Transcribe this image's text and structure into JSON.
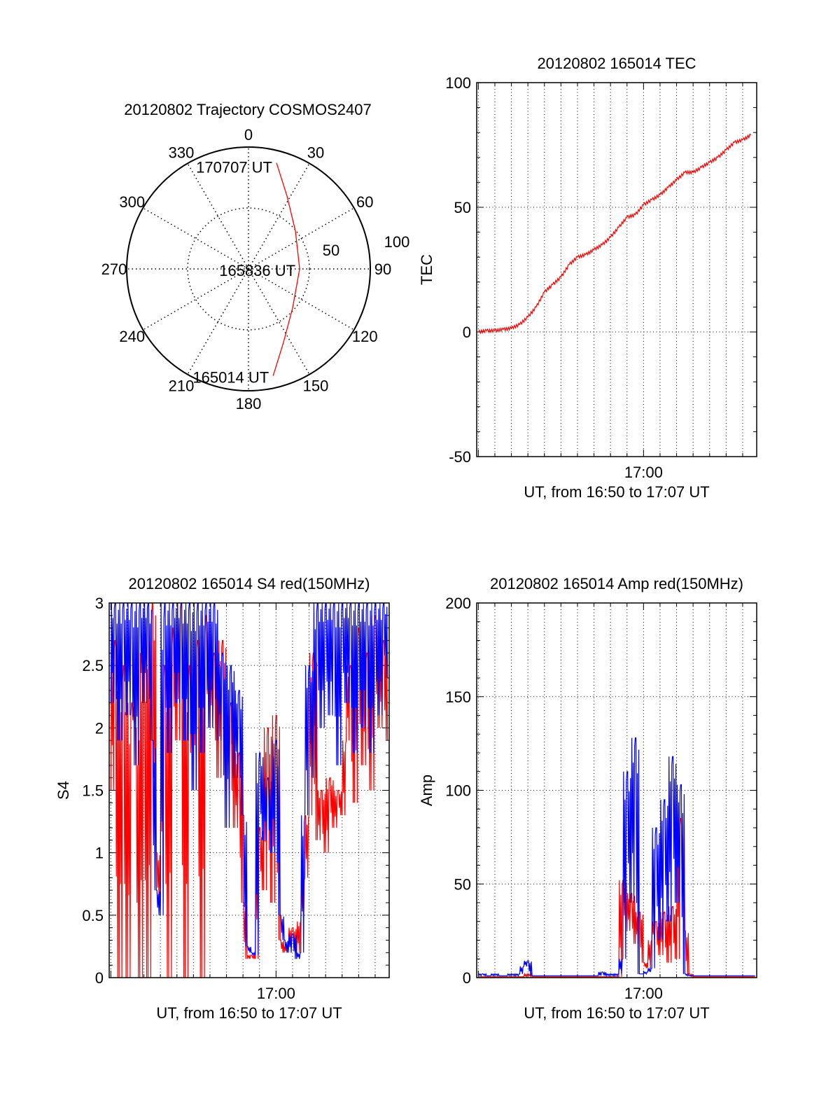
{
  "chart_data": [
    {
      "type": "polar",
      "title": "20120802 Trajectory COSMOS2407",
      "azimuth_labels": [
        "0",
        "30",
        "60",
        "90",
        "120",
        "150",
        "180",
        "210",
        "240",
        "270",
        "300",
        "330"
      ],
      "radial_labels": [
        "50",
        "100"
      ],
      "rlim": [
        0,
        100
      ],
      "trajectory": {
        "color": "#ff0000",
        "az": [
          167,
          154.7,
          131.6,
          90,
          51.1,
          27.9,
          14.8
        ],
        "r": [
          90,
          67,
          48.4,
          42,
          49.5,
          67.6,
          90
        ]
      },
      "annotations": [
        {
          "text": "165014 UT",
          "az": 167,
          "r": 90
        },
        {
          "text": "165836 UT",
          "az": 90,
          "r": 42
        },
        {
          "text": "170707 UT",
          "az": 14.8,
          "r": 90
        }
      ]
    },
    {
      "type": "line",
      "title": "20120802 165014 TEC",
      "xlabel": "UT, from 16:50 to 17:07 UT",
      "ylabel": "TEC",
      "x_units": "minutes after 16:50 UT",
      "xlim": [
        -0.1,
        16.85
      ],
      "x_tick_labels": [
        {
          "x": 10,
          "label": "17:00"
        }
      ],
      "ylim": [
        -50,
        100
      ],
      "y_tick_labels": [
        "-50",
        "0",
        "50",
        "100"
      ],
      "yticks": [
        -50,
        0,
        50,
        100
      ],
      "series": [
        {
          "name": "TEC",
          "color": "#ff0000",
          "x_start": 0,
          "x_step": 0.5,
          "values": [
            0,
            0.5,
            0.5,
            1,
            1.5,
            3,
            6,
            10,
            16,
            19,
            22,
            27,
            30,
            31,
            33,
            35,
            38,
            42,
            46,
            47,
            51,
            53,
            55,
            58,
            61,
            64,
            64,
            66,
            68,
            70,
            73,
            76,
            77,
            79
          ]
        }
      ]
    },
    {
      "type": "line",
      "title": "20120802 165014 S4 red(150MHz)",
      "xlabel": "UT, from 16:50 to 17:07 UT",
      "ylabel": "S4",
      "x_units": "minutes after 16:50 UT",
      "xlim": [
        -0.1,
        16.85
      ],
      "x_tick_labels": [
        {
          "x": 10,
          "label": "17:00"
        }
      ],
      "ylim": [
        0,
        3
      ],
      "y_tick_labels": [
        "0",
        "0.5",
        "1",
        "1.5",
        "2",
        "2.5",
        "3"
      ],
      "yticks": [
        0,
        0.5,
        1,
        1.5,
        2,
        2.5,
        3
      ],
      "series": [
        {
          "name": "red",
          "color": "#ff0000",
          "x_start": 0,
          "x_step": 0.25,
          "values": [
            1.5,
            2.7,
            0,
            2.5,
            0,
            2.2,
            2.0,
            0,
            2.6,
            0,
            3,
            1.0,
            0.6,
            2.5,
            0,
            2.8,
            1.9,
            3,
            0,
            2.5,
            1.5,
            2.7,
            0,
            2.9,
            2.0,
            2.6,
            1.6,
            2.7,
            1.5,
            2.2,
            1.2,
            1.8,
            0.6,
            0.15,
            0.18,
            0.15,
            1.2,
            0.7,
            2.0,
            0.6,
            2.1,
            0.3,
            0.2,
            0.25,
            0.4,
            0.2,
            0.45,
            0.8,
            1.3,
            2.6,
            1.1,
            1.5,
            1.0,
            1.6,
            1.2,
            1.5,
            1.3,
            1.9,
            2.5,
            1.4,
            2.8,
            1.7,
            2.6,
            1.5,
            2.9,
            2.0,
            2.7,
            1.9
          ]
        },
        {
          "name": "blue",
          "color": "#0000ff",
          "x_start": 0,
          "x_step": 0.25,
          "values": [
            2.2,
            3,
            1.9,
            3,
            2.1,
            3,
            1.7,
            3,
            2.2,
            3,
            1.9,
            0.7,
            0.5,
            3,
            1.8,
            3,
            2.2,
            3,
            1.9,
            3,
            1.5,
            3,
            1.8,
            3,
            2.0,
            3,
            1.9,
            2.6,
            1.2,
            2.5,
            1.6,
            2.3,
            1.3,
            0.25,
            0.2,
            0.18,
            1.8,
            1.1,
            1.6,
            1.0,
            1.9,
            0.5,
            0.3,
            0.2,
            0.35,
            0.15,
            0.2,
            1.3,
            2.5,
            1.6,
            3,
            2.0,
            3,
            2.1,
            3,
            1.7,
            3,
            2.2,
            3,
            1.8,
            3,
            2.0,
            3,
            1.8,
            3,
            2.1,
            3,
            2.4
          ]
        }
      ]
    },
    {
      "type": "line",
      "title": "20120802 165014 Amp red(150MHz)",
      "xlabel": "UT, from 16:50 to 17:07 UT",
      "ylabel": "Amp",
      "x_units": "minutes after 16:50 UT",
      "xlim": [
        -0.1,
        16.85
      ],
      "x_tick_labels": [
        {
          "x": 10,
          "label": "17:00"
        }
      ],
      "ylim": [
        0,
        200
      ],
      "y_tick_labels": [
        "0",
        "50",
        "100",
        "150",
        "200"
      ],
      "yticks": [
        0,
        50,
        100,
        150,
        200
      ],
      "series": [
        {
          "name": "red",
          "color": "#ff0000",
          "x_start": 0,
          "x_step": 0.25,
          "values": [
            0.5,
            0.5,
            0.5,
            0.5,
            0.5,
            0.5,
            0.5,
            0.5,
            0.5,
            0.5,
            0.5,
            0.5,
            2,
            0.5,
            0.5,
            0.5,
            0.5,
            0.5,
            0.5,
            0.5,
            0.5,
            0.5,
            0.5,
            0.5,
            0.5,
            0.5,
            0.5,
            0.5,
            0.5,
            0.5,
            0.5,
            0.5,
            0.5,
            0.5,
            0.5,
            52,
            25,
            45,
            18,
            35,
            8,
            5,
            20,
            30,
            12,
            35,
            8,
            38,
            10,
            85,
            25,
            2,
            0.5,
            0.5,
            0.5,
            0.5,
            0.5,
            0.5,
            0.5,
            0.5,
            0.5,
            0.5,
            0.5,
            0.5,
            0.5,
            0.5,
            0.5,
            0.5
          ]
        },
        {
          "name": "blue",
          "color": "#0000ff",
          "x_start": 0,
          "x_step": 0.25,
          "values": [
            1,
            2,
            1,
            1,
            2,
            1,
            1,
            1,
            2,
            1,
            2,
            6,
            9,
            1,
            1,
            1,
            1,
            1,
            1,
            1,
            1,
            1,
            1,
            1,
            1,
            1,
            1,
            1,
            1,
            1,
            3,
            1,
            2,
            1,
            2,
            10,
            110,
            40,
            128,
            2,
            2,
            3,
            5,
            80,
            20,
            95,
            30,
            118,
            40,
            103,
            2,
            1,
            1,
            1,
            1,
            1,
            1,
            1,
            1,
            1,
            1,
            1,
            1,
            1,
            1,
            1,
            1,
            1
          ]
        }
      ]
    }
  ]
}
